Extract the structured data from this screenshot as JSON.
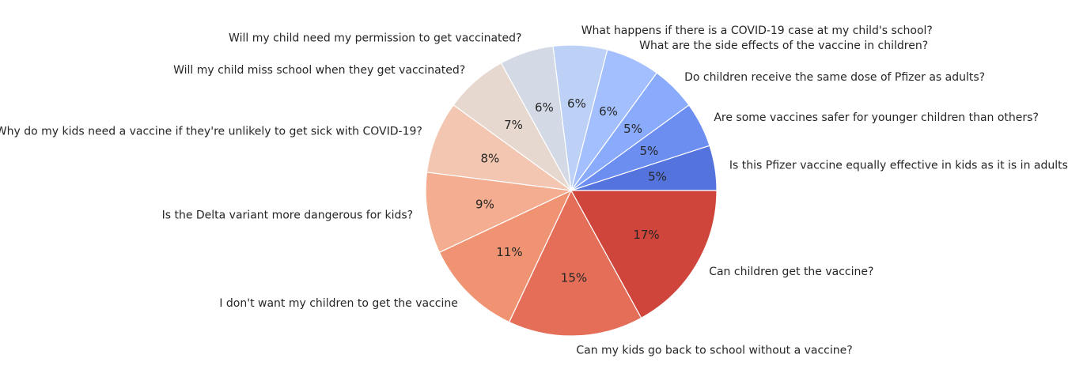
{
  "chart_data": {
    "type": "pie",
    "start_angle_deg": 0,
    "direction": "counterclockwise",
    "slices": [
      {
        "label": "Is this Pfizer vaccine equally effective in kids as it is in adults?",
        "value": 5,
        "pct_label": "5%",
        "color": "#5573dc"
      },
      {
        "label": "Are some vaccines safer for younger children than others?",
        "value": 5,
        "pct_label": "5%",
        "color": "#6c8ef0"
      },
      {
        "label": "Do children receive the same dose of Pfizer as adults?",
        "value": 5,
        "pct_label": "5%",
        "color": "#8aabfb"
      },
      {
        "label": "What are the side effects of the vaccine in children?",
        "value": 6,
        "pct_label": "6%",
        "color": "#a3bffe"
      },
      {
        "label": "What happens if there is a COVID-19 case at my child's school?",
        "value": 6,
        "pct_label": "6%",
        "color": "#bdd0f6"
      },
      {
        "label": "Will my child need my permission to get vaccinated?",
        "value": 6,
        "pct_label": "6%",
        "color": "#d4dae5"
      },
      {
        "label": "Will my child miss school when they get vaccinated?",
        "value": 7,
        "pct_label": "7%",
        "color": "#e6d8cf"
      },
      {
        "label": "Why do my kids need a vaccine if they're unlikely to get sick with COVID-19?",
        "value": 8,
        "pct_label": "8%",
        "color": "#f2c6b0"
      },
      {
        "label": "Is the Delta variant more dangerous for kids?",
        "value": 9,
        "pct_label": "9%",
        "color": "#f4ad90"
      },
      {
        "label": "I don't want my children to get the vaccine",
        "value": 11,
        "pct_label": "11%",
        "color": "#f09373"
      },
      {
        "label": "Can my kids go back to school without a vaccine?",
        "value": 15,
        "pct_label": "15%",
        "color": "#e46e58"
      },
      {
        "label": "Can children get the vaccine?",
        "value": 17,
        "pct_label": "17%",
        "color": "#d0453b"
      }
    ]
  }
}
